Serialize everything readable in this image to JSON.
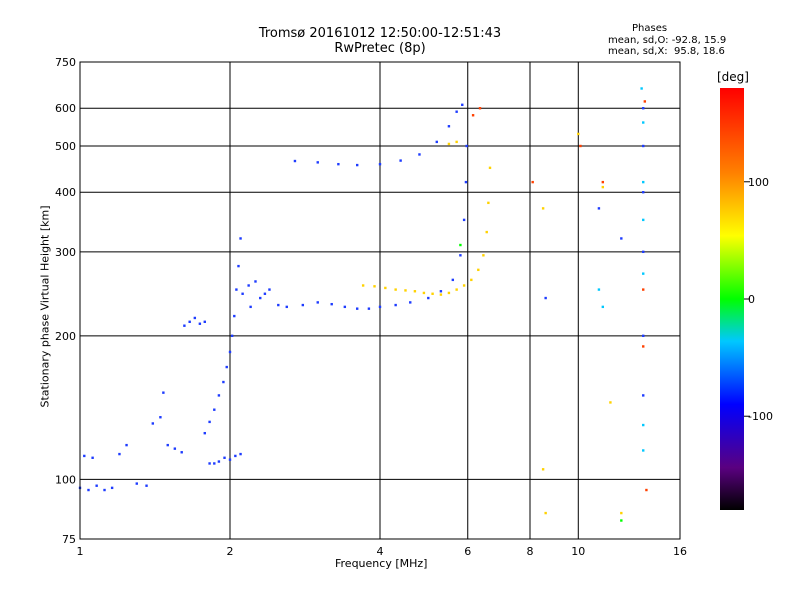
{
  "chart_data": {
    "type": "scatter",
    "title": "Tromsø 20161012 12:50:00-12:51:43",
    "subtitle": "RwPretec (8p)",
    "xlabel": "Frequency [MHz]",
    "ylabel": "Stationary phase Virtual Height [km]",
    "x_scale": "log",
    "y_scale": "log",
    "xlim": [
      1,
      16
    ],
    "ylim": [
      75,
      750
    ],
    "x_ticks": [
      1,
      2,
      4,
      6,
      8,
      10,
      16
    ],
    "y_ticks": [
      75,
      100,
      200,
      300,
      400,
      500,
      600,
      750
    ],
    "grid": true,
    "stats_header": "Phases",
    "stats": [
      "mean, sd,O: -92.8, 15.9",
      "mean, sd,X:  95.8, 18.6"
    ],
    "colorbar": {
      "label": "[deg]",
      "ticks": [
        100,
        0,
        -100
      ],
      "range": [
        -180,
        180
      ],
      "colors": [
        "#000000",
        "#5a0080",
        "#0000ff",
        "#00c8ff",
        "#00ff00",
        "#ffff00",
        "#ff8000",
        "#ff0000"
      ]
    },
    "series": [
      {
        "color": "#1e3cff",
        "points": [
          [
            1.02,
            112
          ],
          [
            1.06,
            111
          ],
          [
            1.0,
            96
          ],
          [
            1.04,
            95
          ],
          [
            1.08,
            97
          ],
          [
            1.12,
            95
          ],
          [
            1.16,
            96
          ],
          [
            1.2,
            113
          ],
          [
            1.24,
            118
          ],
          [
            1.3,
            98
          ],
          [
            1.36,
            97
          ],
          [
            1.4,
            131
          ],
          [
            1.45,
            135
          ],
          [
            1.47,
            152
          ],
          [
            1.5,
            118
          ],
          [
            1.55,
            116
          ],
          [
            1.6,
            114
          ],
          [
            1.62,
            210
          ],
          [
            1.66,
            214
          ],
          [
            1.7,
            218
          ],
          [
            1.74,
            212
          ],
          [
            1.78,
            214
          ],
          [
            1.82,
            108
          ],
          [
            1.86,
            108
          ],
          [
            1.9,
            109
          ],
          [
            1.95,
            111
          ],
          [
            2.0,
            110
          ],
          [
            2.05,
            112
          ],
          [
            2.1,
            113
          ],
          [
            1.78,
            125
          ],
          [
            1.82,
            132
          ],
          [
            1.86,
            140
          ],
          [
            1.9,
            150
          ],
          [
            1.94,
            160
          ],
          [
            1.97,
            172
          ],
          [
            2.0,
            185
          ],
          [
            2.02,
            200
          ],
          [
            2.04,
            220
          ],
          [
            2.06,
            250
          ],
          [
            2.08,
            280
          ],
          [
            2.1,
            320
          ],
          [
            2.12,
            245
          ],
          [
            2.18,
            255
          ],
          [
            2.25,
            260
          ],
          [
            2.3,
            240
          ],
          [
            2.35,
            245
          ],
          [
            2.4,
            250
          ],
          [
            2.2,
            230
          ],
          [
            2.5,
            232
          ],
          [
            2.6,
            230
          ],
          [
            2.8,
            232
          ],
          [
            3.0,
            235
          ],
          [
            3.2,
            233
          ],
          [
            3.4,
            230
          ],
          [
            3.6,
            228
          ],
          [
            3.8,
            228
          ],
          [
            4.0,
            230
          ],
          [
            4.3,
            232
          ],
          [
            4.6,
            235
          ],
          [
            5.0,
            240
          ],
          [
            5.3,
            248
          ],
          [
            5.6,
            262
          ],
          [
            5.8,
            295
          ],
          [
            5.9,
            350
          ],
          [
            5.95,
            420
          ],
          [
            5.97,
            500
          ],
          [
            2.7,
            465
          ],
          [
            3.0,
            462
          ],
          [
            3.3,
            458
          ],
          [
            3.6,
            456
          ],
          [
            4.0,
            458
          ],
          [
            4.4,
            466
          ],
          [
            4.8,
            480
          ],
          [
            5.2,
            510
          ],
          [
            5.5,
            550
          ],
          [
            5.7,
            590
          ],
          [
            5.85,
            610
          ],
          [
            13.5,
            600
          ],
          [
            13.5,
            500
          ],
          [
            13.5,
            400
          ],
          [
            13.5,
            300
          ],
          [
            13.5,
            200
          ],
          [
            13.5,
            150
          ],
          [
            11.0,
            370
          ],
          [
            12.2,
            320
          ],
          [
            8.6,
            240
          ]
        ]
      },
      {
        "color": "#ffd200",
        "points": [
          [
            3.7,
            255
          ],
          [
            3.9,
            254
          ],
          [
            4.1,
            252
          ],
          [
            4.3,
            250
          ],
          [
            4.5,
            249
          ],
          [
            4.7,
            248
          ],
          [
            4.9,
            246
          ],
          [
            5.1,
            245
          ],
          [
            5.3,
            244
          ],
          [
            5.5,
            246
          ],
          [
            5.7,
            250
          ],
          [
            5.9,
            255
          ],
          [
            6.1,
            262
          ],
          [
            6.3,
            275
          ],
          [
            6.45,
            295
          ],
          [
            6.55,
            330
          ],
          [
            6.6,
            380
          ],
          [
            6.65,
            450
          ],
          [
            5.5,
            505
          ],
          [
            5.7,
            510
          ],
          [
            8.5,
            105
          ],
          [
            8.6,
            85
          ],
          [
            8.5,
            370
          ],
          [
            10.0,
            530
          ],
          [
            11.2,
            410
          ],
          [
            11.6,
            145
          ],
          [
            12.2,
            85
          ]
        ]
      },
      {
        "color": "#ff4000",
        "points": [
          [
            6.15,
            580
          ],
          [
            6.35,
            600
          ],
          [
            8.1,
            420
          ],
          [
            10.1,
            500
          ],
          [
            11.2,
            420
          ],
          [
            13.6,
            620
          ],
          [
            13.5,
            250
          ],
          [
            13.5,
            190
          ],
          [
            13.7,
            95
          ]
        ]
      },
      {
        "color": "#00c8ff",
        "points": [
          [
            13.4,
            660
          ],
          [
            13.5,
            560
          ],
          [
            13.5,
            420
          ],
          [
            13.5,
            350
          ],
          [
            13.5,
            270
          ],
          [
            13.5,
            130
          ],
          [
            13.5,
            115
          ],
          [
            11.0,
            250
          ],
          [
            11.2,
            230
          ]
        ]
      },
      {
        "color": "#00ff00",
        "points": [
          [
            5.8,
            310
          ],
          [
            12.2,
            82
          ]
        ]
      }
    ]
  }
}
